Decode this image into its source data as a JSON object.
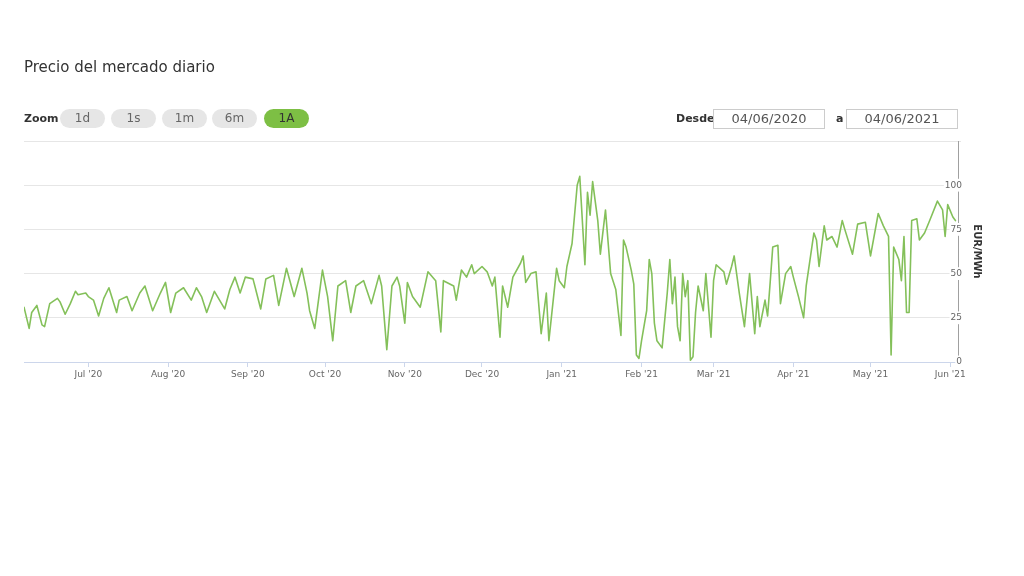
{
  "chart_data": {
    "type": "line",
    "title": "Precio del mercado diario",
    "ylabel": "EUR/MWh",
    "annotations": [
      "Zoom",
      "1d",
      "1s",
      "1m",
      "6m",
      "1A",
      "Desde",
      "04/06/2020",
      "a",
      "04/06/2021"
    ],
    "x": [
      "2020-06-06",
      "2020-06-08",
      "2020-06-09",
      "2020-06-11",
      "2020-06-13",
      "2020-06-14",
      "2020-06-16",
      "2020-06-19",
      "2020-06-20",
      "2020-06-22",
      "2020-06-24",
      "2020-06-26",
      "2020-06-27",
      "2020-06-30",
      "2020-07-01",
      "2020-07-03",
      "2020-07-05",
      "2020-07-07",
      "2020-07-09",
      "2020-07-12",
      "2020-07-13",
      "2020-07-16",
      "2020-07-18",
      "2020-07-21",
      "2020-07-23",
      "2020-07-26",
      "2020-07-29",
      "2020-07-31",
      "2020-08-02",
      "2020-08-04",
      "2020-08-07",
      "2020-08-10",
      "2020-08-12",
      "2020-08-14",
      "2020-08-16",
      "2020-08-19",
      "2020-08-21",
      "2020-08-23",
      "2020-08-25",
      "2020-08-27",
      "2020-08-29",
      "2020-08-31",
      "2020-09-03",
      "2020-09-06",
      "2020-09-08",
      "2020-09-11",
      "2020-09-13",
      "2020-09-16",
      "2020-09-19",
      "2020-09-22",
      "2020-09-24",
      "2020-09-25",
      "2020-09-27",
      "2020-09-30",
      "2020-10-02",
      "2020-10-04",
      "2020-10-06",
      "2020-10-09",
      "2020-10-11",
      "2020-10-13",
      "2020-10-16",
      "2020-10-19",
      "2020-10-22",
      "2020-10-23",
      "2020-10-25",
      "2020-10-27",
      "2020-10-29",
      "2020-10-30",
      "2020-11-01",
      "2020-11-02",
      "2020-11-04",
      "2020-11-07",
      "2020-11-10",
      "2020-11-13",
      "2020-11-15",
      "2020-11-16",
      "2020-11-20",
      "2020-11-21",
      "2020-11-23",
      "2020-11-25",
      "2020-11-27",
      "2020-11-28",
      "2020-12-01",
      "2020-12-03",
      "2020-12-05",
      "2020-12-06",
      "2020-12-08",
      "2020-12-09",
      "2020-12-11",
      "2020-12-13",
      "2020-12-16",
      "2020-12-17",
      "2020-12-18",
      "2020-12-20",
      "2020-12-22",
      "2020-12-24",
      "2020-12-26",
      "2020-12-27",
      "2020-12-30",
      "2020-12-31",
      "2021-01-02",
      "2021-01-03",
      "2021-01-05",
      "2021-01-07",
      "2021-01-08",
      "2021-01-10",
      "2021-01-11",
      "2021-01-12",
      "2021-01-13",
      "2021-01-15",
      "2021-01-16",
      "2021-01-18",
      "2021-01-20",
      "2021-01-22",
      "2021-01-24",
      "2021-01-25",
      "2021-01-26",
      "2021-01-28",
      "2021-01-29",
      "2021-01-30",
      "2021-01-31",
      "2021-02-01",
      "2021-02-03",
      "2021-02-04",
      "2021-02-05",
      "2021-02-06",
      "2021-02-07",
      "2021-02-09",
      "2021-02-11",
      "2021-02-12",
      "2021-02-13",
      "2021-02-14",
      "2021-02-15",
      "2021-02-16",
      "2021-02-17",
      "2021-02-18",
      "2021-02-19",
      "2021-02-20",
      "2021-02-21",
      "2021-02-22",
      "2021-02-23",
      "2021-02-25",
      "2021-02-26",
      "2021-02-28",
      "2021-03-01",
      "2021-03-02",
      "2021-03-05",
      "2021-03-06",
      "2021-03-08",
      "2021-03-09",
      "2021-03-11",
      "2021-03-13",
      "2021-03-15",
      "2021-03-17",
      "2021-03-18",
      "2021-03-19",
      "2021-03-21",
      "2021-03-22",
      "2021-03-23",
      "2021-03-24",
      "2021-03-26",
      "2021-03-27",
      "2021-03-29",
      "2021-03-31",
      "2021-04-01",
      "2021-04-03",
      "2021-04-05",
      "2021-04-06",
      "2021-04-09",
      "2021-04-10",
      "2021-04-11",
      "2021-04-13",
      "2021-04-14",
      "2021-04-16",
      "2021-04-18",
      "2021-04-20",
      "2021-04-21",
      "2021-04-24",
      "2021-04-26",
      "2021-04-29",
      "2021-05-01",
      "2021-05-04",
      "2021-05-06",
      "2021-05-08",
      "2021-05-09",
      "2021-05-10",
      "2021-05-12",
      "2021-05-13",
      "2021-05-14",
      "2021-05-15",
      "2021-05-16",
      "2021-05-17",
      "2021-05-19",
      "2021-05-20",
      "2021-05-22",
      "2021-05-24",
      "2021-05-27",
      "2021-05-29",
      "2021-05-30",
      "2021-05-31",
      "2021-06-02",
      "2021-06-03"
    ],
    "values": [
      31,
      19,
      28,
      32,
      21,
      20,
      33,
      36,
      34,
      27,
      33,
      40,
      38,
      39,
      37,
      35,
      26,
      36,
      42,
      28,
      35,
      37,
      29,
      39,
      43,
      29,
      39,
      45,
      28,
      39,
      42,
      35,
      42,
      37,
      28,
      40,
      35,
      30,
      41,
      48,
      39,
      48,
      47,
      30,
      47,
      49,
      32,
      53,
      37,
      53,
      39,
      29,
      19,
      52,
      37,
      12,
      43,
      46,
      28,
      43,
      46,
      33,
      49,
      43,
      7,
      43,
      48,
      43,
      22,
      45,
      37,
      31,
      51,
      46,
      17,
      46,
      43,
      35,
      52,
      48,
      55,
      50,
      54,
      51,
      43,
      48,
      14,
      43,
      31,
      48,
      56,
      60,
      45,
      50,
      51,
      16,
      39,
      12,
      53,
      46,
      42,
      54,
      67,
      100,
      105,
      55,
      96,
      83,
      102,
      80,
      61,
      86,
      50,
      41,
      15,
      69,
      65,
      52,
      44,
      4,
      2,
      12,
      29,
      58,
      50,
      22,
      12,
      8,
      39,
      58,
      33,
      48,
      20,
      12,
      50,
      37,
      46,
      1,
      3,
      28,
      43,
      29,
      50,
      14,
      46,
      55,
      51,
      44,
      54,
      60,
      39,
      20,
      50,
      16,
      37,
      20,
      35,
      26,
      45,
      65,
      66,
      33,
      50,
      54,
      48,
      37,
      25,
      43,
      73,
      69,
      54,
      77,
      69,
      71,
      65,
      80,
      75,
      61,
      78,
      79,
      60,
      84,
      77,
      71,
      4,
      65,
      58,
      46,
      71,
      28,
      28,
      80,
      81,
      69,
      73,
      80,
      91,
      86,
      71,
      89,
      82,
      80
    ],
    "color": "#84c05a",
    "xlim": [
      "2020-06-06",
      "2021-06-04"
    ],
    "xticks": [
      {
        "value": "2020-07-01",
        "label": "Jul '20"
      },
      {
        "value": "2020-08-01",
        "label": "Aug '20"
      },
      {
        "value": "2020-09-01",
        "label": "Sep '20"
      },
      {
        "value": "2020-10-01",
        "label": "Oct '20"
      },
      {
        "value": "2020-11-01",
        "label": "Nov '20"
      },
      {
        "value": "2020-12-01",
        "label": "Dec '20"
      },
      {
        "value": "2021-01-01",
        "label": "Jan '21"
      },
      {
        "value": "2021-02-01",
        "label": "Feb '21"
      },
      {
        "value": "2021-03-01",
        "label": "Mar '21"
      },
      {
        "value": "2021-04-01",
        "label": "Apr '21"
      },
      {
        "value": "2021-05-01",
        "label": "May '21"
      },
      {
        "value": "2021-06-01",
        "label": "Jun '21"
      }
    ],
    "ylim": [
      0,
      125
    ],
    "yticks": [
      0,
      25,
      50,
      75,
      100,
      {
        "value": 125,
        "label": null
      }
    ],
    "grid": "y"
  }
}
